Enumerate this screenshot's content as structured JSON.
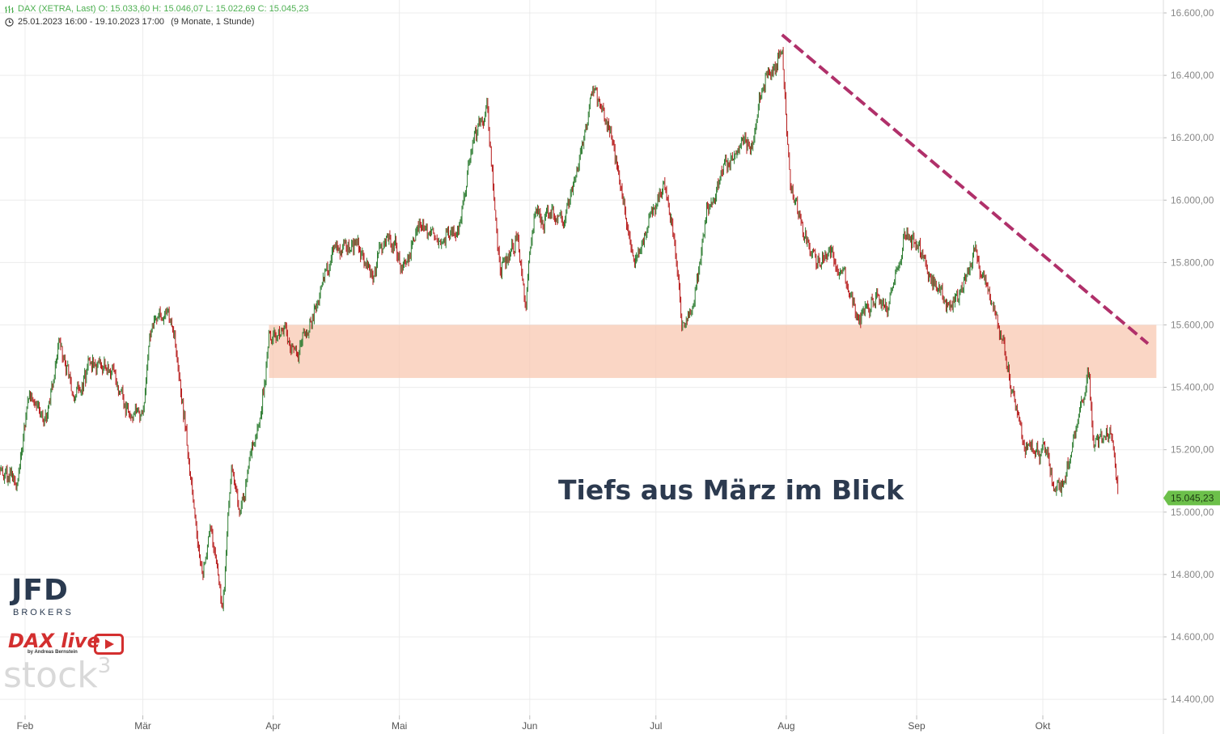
{
  "header": {
    "quote_line": "DAX (XETRA, Last)  O: 15.033,60  H: 15.046,07  L: 15.022,69  C: 15.045,23",
    "range_line": "25.01.2023 16:00 - 19.10.2023 17:00",
    "range_note": "(9 Monate, 1 Stunde)",
    "quote_icon": "bar-chart-icon",
    "range_icon": "clock-icon"
  },
  "annotation_text": "Tiefs aus März im Blick",
  "logos": {
    "jfd": "JFD",
    "brokers": "BROKERS",
    "daxlive": "DAX live",
    "byline": "by Andreas Bernstein",
    "stock": "stock",
    "stock_sup": "3"
  },
  "colors": {
    "up": "#2e7d32",
    "down": "#b71c1c",
    "zone": "#f8c8b2",
    "trendline": "#b0306a",
    "last_price_badge": "#6cc04a",
    "annotation": "#2c3a4f"
  },
  "chart_data": {
    "type": "candlestick",
    "instrument": "DAX (XETRA, Last)",
    "timeframe": "1 Stunde",
    "period": "25.01.2023 16:00 - 19.10.2023 17:00",
    "ohlc_last": {
      "open": 15033.6,
      "high": 15046.07,
      "low": 15022.69,
      "close": 15045.23
    },
    "last_price_label": "15.045,23",
    "y_axis": {
      "ylim": [
        14300,
        16650
      ],
      "ticks": [
        16600,
        16400,
        16200,
        16000,
        15800,
        15600,
        15400,
        15200,
        15000,
        14800,
        14600,
        14400
      ],
      "tick_labels": [
        "16.600,00",
        "16.400,00",
        "16.200,00",
        "16.000,00",
        "15.800,00",
        "15.600,00",
        "15.400,00",
        "15.200,00",
        "15.000,00",
        "14.800,00",
        "14.600,00",
        "14.400,00"
      ],
      "position": "right"
    },
    "x_axis": {
      "labels": [
        "Feb",
        "Mär",
        "Apr",
        "Mai",
        "Jun",
        "Jul",
        "Aug",
        "Sep",
        "Okt"
      ],
      "label_dates": [
        "2023-02-01",
        "2023-03-01",
        "2023-04-01",
        "2023-05-01",
        "2023-06-01",
        "2023-07-01",
        "2023-08-01",
        "2023-09-01",
        "2023-10-01"
      ],
      "range": [
        "2023-01-25",
        "2023-10-28"
      ]
    },
    "grid": true,
    "price_path": [
      [
        "2023-01-25",
        15140
      ],
      [
        "2023-01-27",
        15120
      ],
      [
        "2023-01-30",
        15080
      ],
      [
        "2023-02-02",
        15380
      ],
      [
        "2023-02-06",
        15300
      ],
      [
        "2023-02-09",
        15560
      ],
      [
        "2023-02-13",
        15360
      ],
      [
        "2023-02-16",
        15450
      ],
      [
        "2023-02-20",
        15500
      ],
      [
        "2023-02-23",
        15420
      ],
      [
        "2023-02-27",
        15300
      ],
      [
        "2023-03-01",
        15300
      ],
      [
        "2023-03-03",
        15600
      ],
      [
        "2023-03-07",
        15650
      ],
      [
        "2023-03-09",
        15500
      ],
      [
        "2023-03-13",
        15050
      ],
      [
        "2023-03-15",
        14800
      ],
      [
        "2023-03-17",
        14950
      ],
      [
        "2023-03-20",
        14700
      ],
      [
        "2023-03-22",
        15150
      ],
      [
        "2023-03-24",
        15000
      ],
      [
        "2023-03-27",
        15200
      ],
      [
        "2023-03-29",
        15300
      ],
      [
        "2023-03-31",
        15550
      ],
      [
        "2023-04-04",
        15600
      ],
      [
        "2023-04-06",
        15500
      ],
      [
        "2023-04-11",
        15650
      ],
      [
        "2023-04-14",
        15800
      ],
      [
        "2023-04-18",
        15850
      ],
      [
        "2023-04-21",
        15850
      ],
      [
        "2023-04-25",
        15750
      ],
      [
        "2023-04-28",
        15900
      ],
      [
        "2023-05-02",
        15800
      ],
      [
        "2023-05-05",
        15900
      ],
      [
        "2023-05-10",
        15900
      ],
      [
        "2023-05-15",
        15900
      ],
      [
        "2023-05-19",
        16200
      ],
      [
        "2023-05-22",
        16280
      ],
      [
        "2023-05-25",
        15750
      ],
      [
        "2023-05-29",
        15900
      ],
      [
        "2023-05-31",
        15650
      ],
      [
        "2023-06-02",
        15950
      ],
      [
        "2023-06-06",
        15950
      ],
      [
        "2023-06-09",
        15950
      ],
      [
        "2023-06-13",
        16150
      ],
      [
        "2023-06-16",
        16350
      ],
      [
        "2023-06-19",
        16250
      ],
      [
        "2023-06-22",
        16100
      ],
      [
        "2023-06-26",
        15800
      ],
      [
        "2023-06-29",
        15900
      ],
      [
        "2023-07-03",
        16050
      ],
      [
        "2023-07-05",
        15900
      ],
      [
        "2023-07-07",
        15600
      ],
      [
        "2023-07-10",
        15650
      ],
      [
        "2023-07-13",
        15950
      ],
      [
        "2023-07-17",
        16100
      ],
      [
        "2023-07-20",
        16150
      ],
      [
        "2023-07-24",
        16200
      ],
      [
        "2023-07-27",
        16400
      ],
      [
        "2023-07-31",
        16470
      ],
      [
        "2023-08-02",
        16050
      ],
      [
        "2023-08-04",
        15950
      ],
      [
        "2023-08-08",
        15800
      ],
      [
        "2023-08-11",
        15850
      ],
      [
        "2023-08-15",
        15750
      ],
      [
        "2023-08-18",
        15600
      ],
      [
        "2023-08-22",
        15700
      ],
      [
        "2023-08-25",
        15650
      ],
      [
        "2023-08-29",
        15900
      ],
      [
        "2023-09-01",
        15850
      ],
      [
        "2023-09-05",
        15750
      ],
      [
        "2023-09-08",
        15650
      ],
      [
        "2023-09-12",
        15700
      ],
      [
        "2023-09-15",
        15850
      ],
      [
        "2023-09-18",
        15700
      ],
      [
        "2023-09-20",
        15650
      ],
      [
        "2023-09-22",
        15500
      ],
      [
        "2023-09-26",
        15250
      ],
      [
        "2023-09-28",
        15200
      ],
      [
        "2023-10-02",
        15200
      ],
      [
        "2023-10-04",
        15050
      ],
      [
        "2023-10-06",
        15100
      ],
      [
        "2023-10-10",
        15350
      ],
      [
        "2023-10-12",
        15450
      ],
      [
        "2023-10-13",
        15200
      ],
      [
        "2023-10-17",
        15250
      ],
      [
        "2023-10-19",
        15045
      ]
    ],
    "zones": [
      {
        "label": "",
        "x_range": [
          "2023-03-31",
          "2023-10-28"
        ],
        "y_range": [
          15430,
          15600
        ]
      }
    ],
    "trendlines": [
      {
        "label": "",
        "from": [
          "2023-07-31",
          16530
        ],
        "to": [
          "2023-10-26",
          15540
        ],
        "style": "dashed"
      }
    ]
  }
}
